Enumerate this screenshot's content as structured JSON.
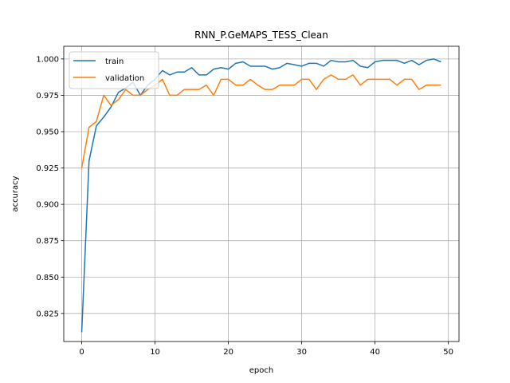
{
  "chart_data": {
    "type": "line",
    "title": "RNN_P.GeMAPS_TESS_Clean",
    "xlabel": "epoch",
    "ylabel": "accuracy",
    "xlim": [
      -2.45,
      51.45
    ],
    "ylim": [
      0.8057,
      1.0087
    ],
    "xticks": [
      0,
      10,
      20,
      30,
      40,
      50
    ],
    "yticks": [
      0.825,
      0.85,
      0.875,
      0.9,
      0.925,
      0.95,
      0.975,
      1.0
    ],
    "ytick_labels": [
      "0.825",
      "0.850",
      "0.875",
      "0.900",
      "0.925",
      "0.950",
      "0.975",
      "1.000"
    ],
    "grid": true,
    "legend_position": "upper-left",
    "x": [
      0,
      1,
      2,
      3,
      4,
      5,
      6,
      7,
      8,
      9,
      10,
      11,
      12,
      13,
      14,
      15,
      16,
      17,
      18,
      19,
      20,
      21,
      22,
      23,
      24,
      25,
      26,
      27,
      28,
      29,
      30,
      31,
      32,
      33,
      34,
      35,
      36,
      37,
      38,
      39,
      40,
      41,
      42,
      43,
      44,
      45,
      46,
      47,
      48,
      49
    ],
    "series": [
      {
        "name": "train",
        "color": "#1f77b4",
        "values": [
          0.812,
          0.93,
          0.954,
          0.96,
          0.967,
          0.977,
          0.98,
          0.984,
          0.975,
          0.982,
          0.986,
          0.992,
          0.989,
          0.991,
          0.991,
          0.994,
          0.989,
          0.989,
          0.993,
          0.994,
          0.993,
          0.997,
          0.998,
          0.995,
          0.995,
          0.995,
          0.993,
          0.994,
          0.997,
          0.996,
          0.995,
          0.997,
          0.997,
          0.995,
          0.999,
          0.998,
          0.998,
          0.999,
          0.995,
          0.994,
          0.998,
          0.999,
          0.999,
          0.999,
          0.997,
          0.999,
          0.996,
          0.999,
          1.0,
          0.998
        ]
      },
      {
        "name": "validation",
        "color": "#ff7f0e",
        "values": [
          0.925,
          0.953,
          0.957,
          0.975,
          0.968,
          0.972,
          0.979,
          0.975,
          0.975,
          0.979,
          0.982,
          0.986,
          0.975,
          0.975,
          0.979,
          0.979,
          0.979,
          0.982,
          0.975,
          0.986,
          0.986,
          0.982,
          0.982,
          0.986,
          0.982,
          0.979,
          0.979,
          0.982,
          0.982,
          0.982,
          0.986,
          0.986,
          0.979,
          0.986,
          0.989,
          0.986,
          0.986,
          0.989,
          0.982,
          0.986,
          0.986,
          0.986,
          0.986,
          0.982,
          0.986,
          0.986,
          0.979,
          0.982,
          0.982,
          0.982
        ]
      }
    ]
  }
}
